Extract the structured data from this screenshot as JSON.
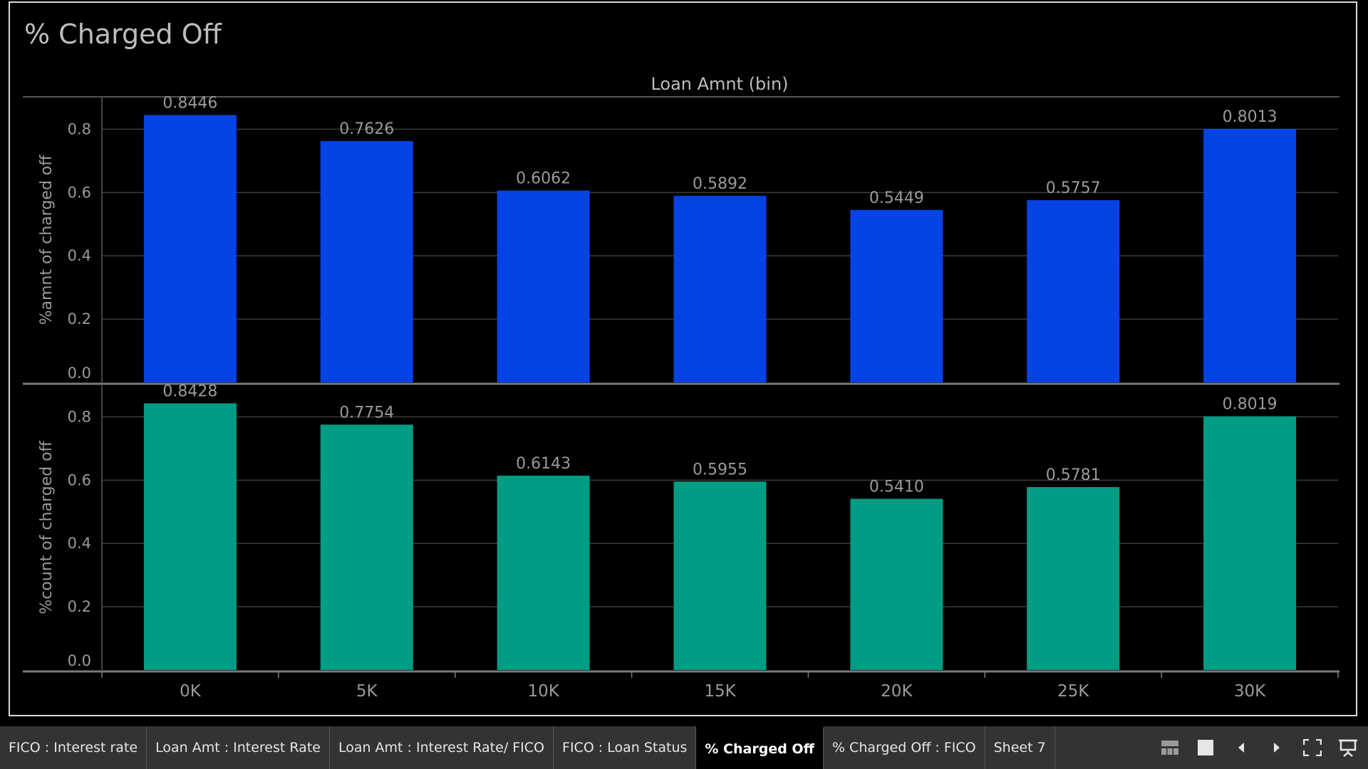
{
  "title": "% Charged Off",
  "chart_data": {
    "type": "bar",
    "column_header": "Loan Amnt (bin)",
    "categories": [
      "0K",
      "5K",
      "10K",
      "15K",
      "20K",
      "25K",
      "30K"
    ],
    "series": [
      {
        "ylabel": "%amnt of charged off",
        "values": [
          0.8446,
          0.7626,
          0.6062,
          0.5892,
          0.5449,
          0.5757,
          0.8013
        ],
        "labels": [
          "0.8446",
          "0.7626",
          "0.6062",
          "0.5892",
          "0.5449",
          "0.5757",
          "0.8013"
        ],
        "color": "#0543e6"
      },
      {
        "ylabel": "%count of charged off",
        "values": [
          0.8428,
          0.7754,
          0.6143,
          0.5955,
          0.541,
          0.5781,
          0.8019
        ],
        "labels": [
          "0.8428",
          "0.7754",
          "0.6143",
          "0.5955",
          "0.5410",
          "0.5781",
          "0.8019"
        ],
        "color": "#009c84"
      }
    ],
    "yticks": [
      "0.0",
      "0.2",
      "0.4",
      "0.6",
      "0.8"
    ],
    "ylim": [
      0,
      0.9
    ],
    "grid": true
  },
  "tabs": [
    {
      "label": "FICO : Interest rate",
      "active": false
    },
    {
      "label": "Loan Amt : Interest Rate",
      "active": false
    },
    {
      "label": "Loan Amt : Interest Rate/ FICO",
      "active": false
    },
    {
      "label": "FICO : Loan Status",
      "active": false
    },
    {
      "label": "% Charged Off",
      "active": true
    },
    {
      "label": "% Charged Off : FICO",
      "active": false
    },
    {
      "label": "Sheet 7",
      "active": false
    }
  ],
  "controls": [
    "thumbnail-view-icon",
    "single-view-icon",
    "prev-sheet-icon",
    "next-sheet-icon",
    "fullscreen-icon",
    "presentation-mode-icon"
  ]
}
